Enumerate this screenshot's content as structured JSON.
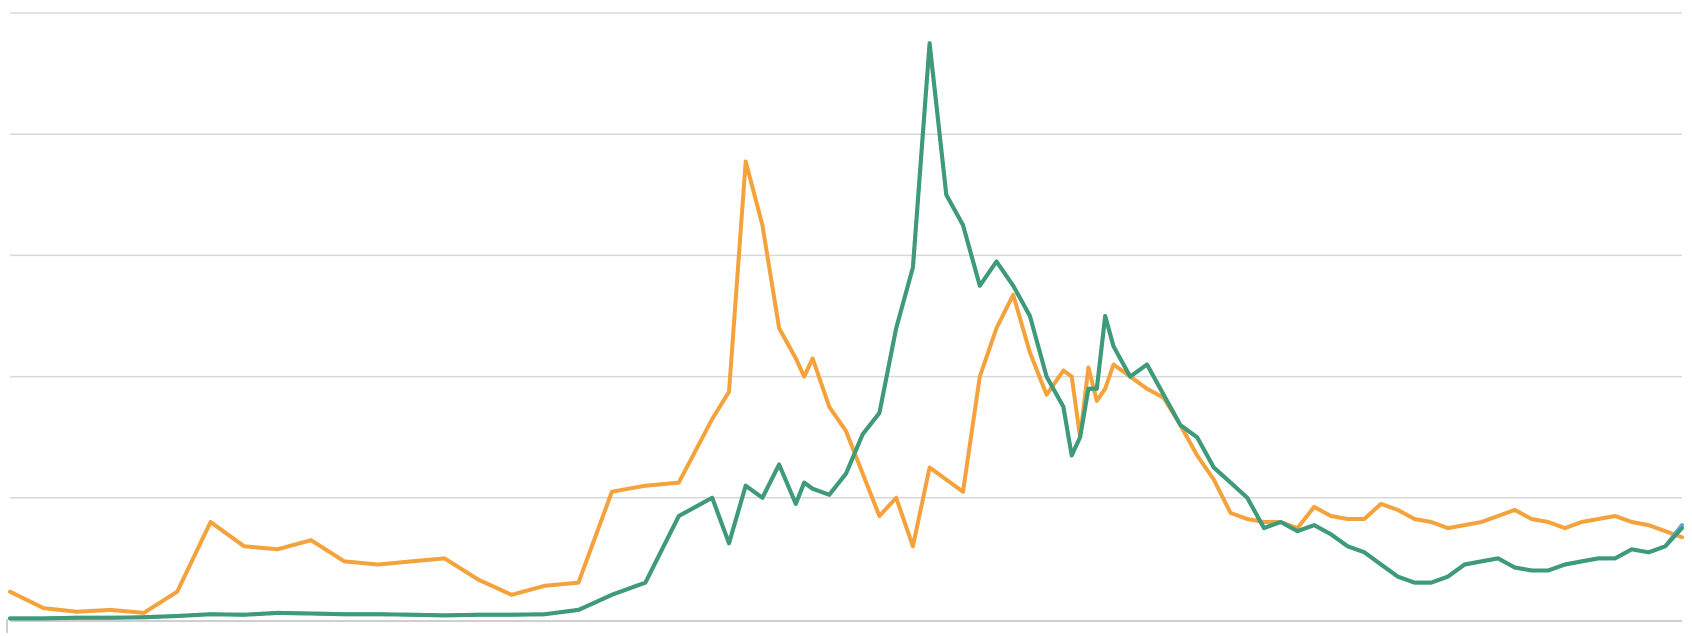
{
  "chart_data": {
    "type": "line",
    "title": "",
    "xlabel": "",
    "ylabel": "",
    "grid": true,
    "legend": "none",
    "ylim": [
      0,
      100
    ],
    "y_gridlines": [
      20,
      40,
      60,
      80,
      100
    ],
    "x": [
      0,
      2,
      4,
      6,
      8,
      10,
      12,
      14,
      16,
      18,
      20,
      22,
      24,
      26,
      28,
      30,
      32,
      34,
      36,
      38,
      40,
      42,
      43,
      44,
      45,
      46,
      47,
      47.5,
      48,
      49,
      50,
      51,
      52,
      53,
      54,
      55,
      56,
      57,
      58,
      59,
      60,
      61,
      62,
      63,
      63.5,
      64,
      64.5,
      65,
      65.5,
      66,
      67,
      68,
      69,
      70,
      71,
      72,
      73,
      74,
      75,
      76,
      77,
      78,
      79,
      80,
      81,
      82,
      83,
      84,
      85,
      86,
      87,
      88,
      89,
      90,
      91,
      92,
      93,
      94,
      95,
      96,
      97,
      98,
      99,
      100
    ],
    "series": [
      {
        "color": "#f4a23b",
        "values": [
          4.5,
          1.8,
          1.2,
          1.5,
          1.0,
          4.5,
          16.0,
          12.0,
          11.5,
          13.0,
          9.5,
          9.0,
          9.5,
          10.0,
          6.5,
          4.0,
          5.5,
          6.0,
          21.0,
          22.0,
          22.5,
          33.0,
          37.5,
          75.5,
          65.0,
          48.0,
          43.0,
          40.0,
          43.0,
          35.0,
          31.0,
          24.0,
          17.0,
          20.0,
          12.0,
          25.0,
          23.0,
          21.0,
          40.0,
          48.0,
          53.5,
          44.0,
          37.0,
          41.0,
          40.0,
          30.0,
          41.5,
          36.0,
          38.0,
          42.0,
          40.0,
          38.0,
          36.5,
          32.0,
          27.0,
          23.0,
          17.5,
          16.5,
          16.0,
          16.0,
          15.0,
          18.5,
          17.0,
          16.5,
          16.5,
          19.0,
          18.0,
          16.5,
          16.0,
          15.0,
          15.5,
          16.0,
          17.0,
          18.0,
          16.5,
          16.0,
          15.0,
          16.0,
          16.5,
          17.0,
          16.0,
          15.5,
          14.5,
          13.5
        ]
      },
      {
        "color": "#5ba7dc",
        "values": [
          0.1,
          0.1,
          0.2,
          0.2,
          0.3,
          0.5,
          0.8,
          0.7,
          1.0,
          0.9,
          0.8,
          0.8,
          0.7,
          0.6,
          0.7,
          0.7,
          0.8,
          1.5,
          4.0,
          6.0,
          17.0,
          20.0,
          12.5,
          22.0,
          20.0,
          25.5,
          19.0,
          22.5,
          21.5,
          20.5,
          24.0,
          30.5,
          34.0,
          48.0,
          58.0,
          95.0,
          70.0,
          65.0,
          55.0,
          59.0,
          55.0,
          50.0,
          40.0,
          35.0,
          27.0,
          30.0,
          38.0,
          38.0,
          50.0,
          45.0,
          40.0,
          42.0,
          37.0,
          32.0,
          30.0,
          25.0,
          22.5,
          20.0,
          15.0,
          16.0,
          14.5,
          15.5,
          14.0,
          12.0,
          11.0,
          9.0,
          7.0,
          6.0,
          6.0,
          7.0,
          9.0,
          9.5,
          10.0,
          8.5,
          8.0,
          8.0,
          9.0,
          9.5,
          10.0,
          10.0,
          11.5,
          11.0,
          12.0,
          15.5
        ]
      },
      {
        "color": "#3e9a77",
        "values": [
          0.1,
          0.1,
          0.2,
          0.2,
          0.3,
          0.5,
          0.8,
          0.7,
          1.0,
          0.9,
          0.8,
          0.8,
          0.7,
          0.6,
          0.7,
          0.7,
          0.8,
          1.5,
          4.0,
          6.0,
          17.0,
          20.0,
          12.5,
          22.0,
          20.0,
          25.5,
          19.0,
          22.5,
          21.5,
          20.5,
          24.0,
          30.5,
          34.0,
          48.0,
          58.0,
          95.0,
          70.0,
          65.0,
          55.0,
          59.0,
          55.0,
          50.0,
          40.0,
          35.0,
          27.0,
          30.0,
          38.0,
          38.0,
          50.0,
          45.0,
          40.0,
          42.0,
          37.0,
          32.0,
          30.0,
          25.0,
          22.5,
          20.0,
          15.0,
          16.0,
          14.5,
          15.5,
          14.0,
          12.0,
          11.0,
          9.0,
          7.0,
          6.0,
          6.0,
          7.0,
          9.0,
          9.5,
          10.0,
          8.5,
          8.0,
          8.0,
          9.0,
          9.5,
          10.0,
          10.0,
          11.5,
          11.0,
          12.0,
          15.0
        ]
      }
    ]
  }
}
